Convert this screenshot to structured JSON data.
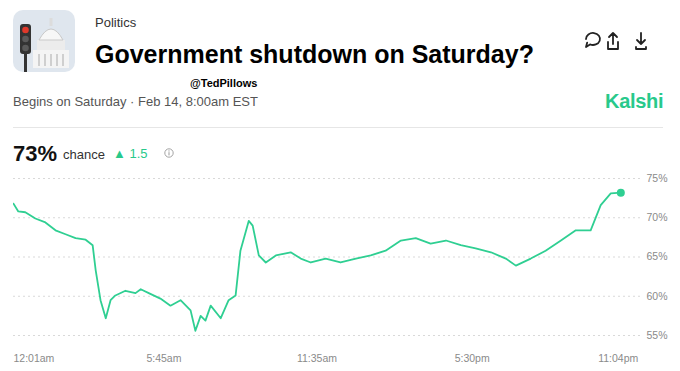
{
  "header": {
    "category": "Politics",
    "title": "Government shutdown on Saturday?",
    "watermark": "@TedPillows",
    "subtitle": "Begins on Saturday · Feb 14, 8:00am EST",
    "brand": "Kalshi",
    "headline": "73%",
    "headline_label": "chance",
    "change": "▲ 1.5"
  },
  "chart_data": {
    "type": "line",
    "x": [
      1,
      12,
      28,
      51,
      74,
      97,
      120,
      143,
      166,
      182,
      189,
      200,
      212,
      223,
      234,
      257,
      280,
      292,
      314,
      337,
      360,
      383,
      406,
      417,
      429,
      440,
      452,
      475,
      493,
      509,
      520,
      539,
      548,
      562,
      578,
      601,
      635,
      658,
      681,
      715,
      749,
      784,
      818,
      852,
      887,
      921,
      955,
      990,
      1024,
      1058,
      1093,
      1127,
      1150,
      1184,
      1218,
      1253,
      1287,
      1321,
      1344,
      1367,
      1390
    ],
    "values": [
      71.8,
      70.8,
      70.7,
      69.9,
      69.4,
      68.4,
      67.9,
      67.4,
      67.2,
      66.5,
      63.3,
      59.5,
      57.2,
      59.5,
      60.1,
      60.7,
      60.4,
      60.9,
      60.3,
      59.7,
      58.8,
      59.5,
      58.2,
      55.6,
      57.5,
      56.9,
      58.8,
      57.2,
      59.5,
      60.1,
      65.8,
      69.6,
      69.0,
      65.2,
      64.3,
      65.2,
      65.6,
      64.8,
      64.3,
      64.8,
      64.3,
      64.8,
      65.2,
      65.8,
      67.1,
      67.4,
      66.7,
      67.1,
      66.5,
      66.1,
      65.6,
      64.8,
      63.9,
      64.8,
      65.8,
      67.1,
      68.4,
      68.4,
      71.6,
      73.1,
      73.2
    ],
    "color": "#2fcf92",
    "xlim": [
      1,
      1435
    ],
    "xticks": [
      {
        "value": 1,
        "label": "12:01am"
      },
      {
        "value": 345,
        "label": "5:45am"
      },
      {
        "value": 695,
        "label": "11:35am"
      },
      {
        "value": 1050,
        "label": "5:30pm"
      },
      {
        "value": 1384,
        "label": "11:04pm"
      }
    ],
    "ylim": [
      55,
      75
    ],
    "yticks": [
      {
        "value": 55,
        "label": "55%"
      },
      {
        "value": 60,
        "label": "60%"
      },
      {
        "value": 65,
        "label": "65%"
      },
      {
        "value": 70,
        "label": "70%"
      },
      {
        "value": 75,
        "label": "75%"
      }
    ],
    "grid": true
  }
}
